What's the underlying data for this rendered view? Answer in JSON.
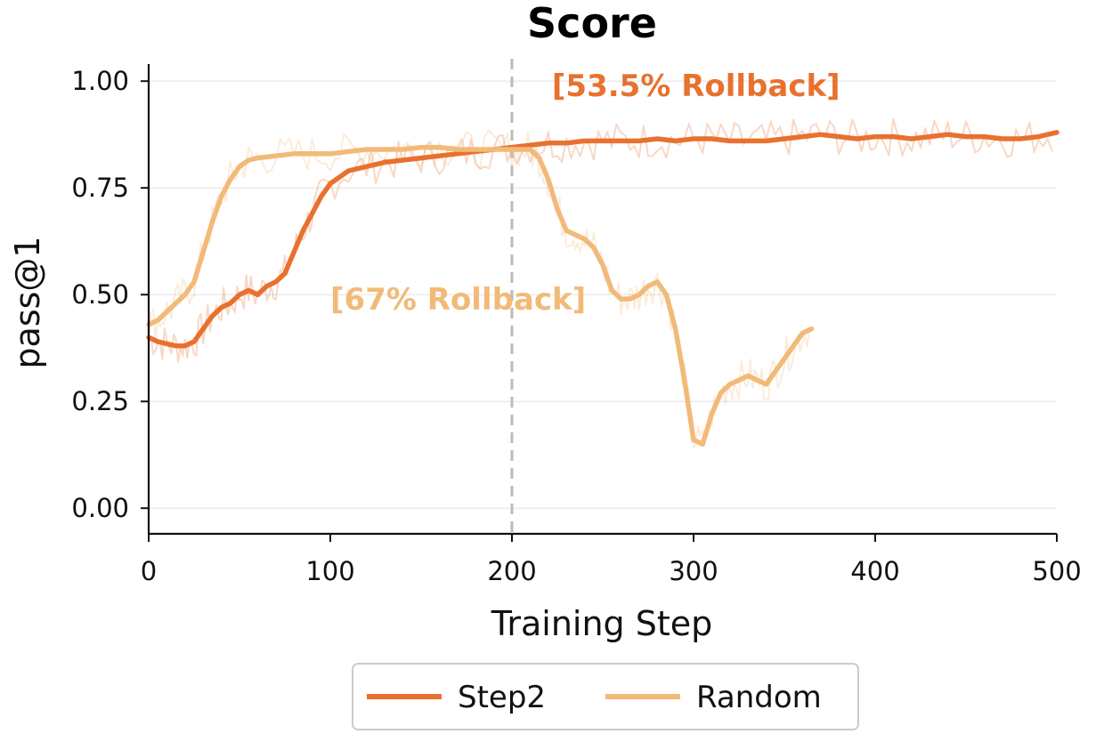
{
  "chart_data": {
    "type": "line",
    "title": "Score",
    "xlabel": "Training Step",
    "ylabel": "pass@1",
    "xlim": [
      0,
      500
    ],
    "ylim": [
      -0.06,
      1.04
    ],
    "x_ticks": [
      0,
      100,
      200,
      300,
      400,
      500
    ],
    "y_ticks": [
      0.0,
      0.25,
      0.5,
      0.75,
      1.0
    ],
    "x_tick_labels": [
      "0",
      "100",
      "200",
      "300",
      "400",
      "500"
    ],
    "y_tick_labels": [
      "0.00",
      "0.25",
      "0.50",
      "0.75",
      "1.00"
    ],
    "grid": "horizontal",
    "legend_position": "bottom-center",
    "vline": {
      "x": 200,
      "style": "dashed",
      "color": "#bbbbbb"
    },
    "colors": {
      "step2": "#E8712F",
      "random": "#F2BA78"
    },
    "series": [
      {
        "name": "Step2",
        "color": "#E8712F",
        "x": [
          0,
          5,
          10,
          15,
          20,
          25,
          30,
          35,
          40,
          45,
          50,
          55,
          60,
          65,
          70,
          75,
          80,
          85,
          90,
          95,
          100,
          110,
          120,
          130,
          140,
          150,
          160,
          170,
          180,
          190,
          200,
          210,
          220,
          230,
          240,
          250,
          260,
          270,
          280,
          290,
          300,
          310,
          320,
          330,
          340,
          350,
          360,
          370,
          380,
          390,
          400,
          410,
          420,
          430,
          440,
          450,
          460,
          470,
          480,
          490,
          500
        ],
        "y": [
          0.4,
          0.39,
          0.385,
          0.38,
          0.38,
          0.39,
          0.42,
          0.45,
          0.47,
          0.48,
          0.5,
          0.51,
          0.5,
          0.52,
          0.53,
          0.55,
          0.6,
          0.65,
          0.69,
          0.73,
          0.76,
          0.79,
          0.8,
          0.81,
          0.815,
          0.82,
          0.825,
          0.83,
          0.835,
          0.84,
          0.845,
          0.85,
          0.855,
          0.855,
          0.86,
          0.86,
          0.86,
          0.86,
          0.865,
          0.86,
          0.865,
          0.865,
          0.86,
          0.86,
          0.86,
          0.865,
          0.87,
          0.875,
          0.87,
          0.865,
          0.87,
          0.87,
          0.865,
          0.87,
          0.875,
          0.87,
          0.87,
          0.865,
          0.865,
          0.87,
          0.88
        ]
      },
      {
        "name": "Random",
        "color": "#F2BA78",
        "x": [
          0,
          5,
          10,
          15,
          20,
          25,
          30,
          35,
          40,
          45,
          50,
          55,
          60,
          70,
          80,
          90,
          100,
          110,
          120,
          130,
          140,
          150,
          160,
          170,
          180,
          190,
          200,
          205,
          210,
          215,
          220,
          225,
          230,
          235,
          240,
          245,
          250,
          255,
          260,
          265,
          270,
          275,
          280,
          285,
          290,
          295,
          300,
          305,
          310,
          315,
          320,
          325,
          330,
          335,
          340,
          345,
          350,
          355,
          360,
          365
        ],
        "y": [
          0.43,
          0.44,
          0.46,
          0.48,
          0.5,
          0.53,
          0.6,
          0.67,
          0.73,
          0.77,
          0.8,
          0.815,
          0.82,
          0.825,
          0.83,
          0.83,
          0.83,
          0.835,
          0.84,
          0.84,
          0.84,
          0.845,
          0.845,
          0.84,
          0.84,
          0.84,
          0.84,
          0.84,
          0.84,
          0.82,
          0.77,
          0.7,
          0.65,
          0.64,
          0.63,
          0.61,
          0.57,
          0.51,
          0.49,
          0.49,
          0.5,
          0.52,
          0.53,
          0.5,
          0.42,
          0.3,
          0.16,
          0.15,
          0.22,
          0.27,
          0.29,
          0.3,
          0.31,
          0.3,
          0.29,
          0.32,
          0.35,
          0.38,
          0.41,
          0.42
        ]
      }
    ],
    "annotations": [
      {
        "text": "[53.5% Rollback]",
        "color": "#E8712F",
        "x": 222,
        "y": 0.965
      },
      {
        "text": "[67% Rollback]",
        "color": "#F2BA78",
        "x": 100,
        "y": 0.465
      }
    ]
  }
}
